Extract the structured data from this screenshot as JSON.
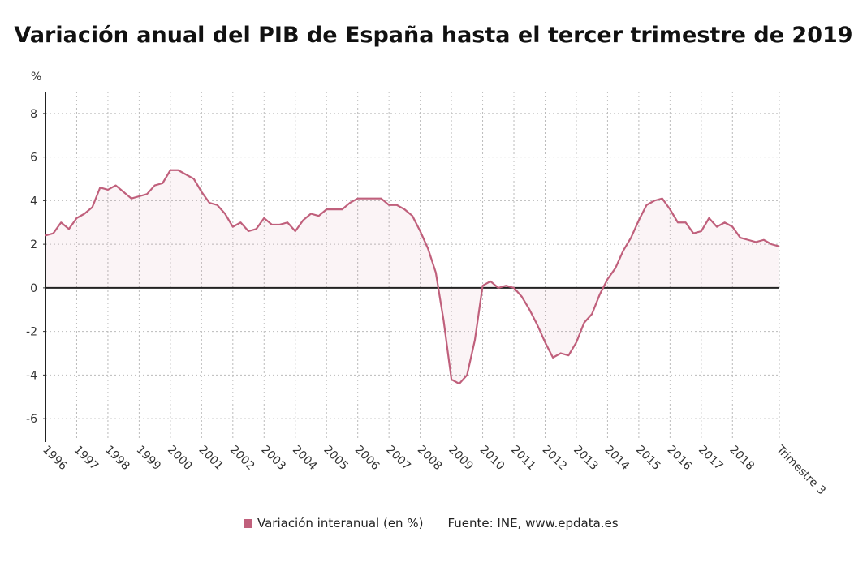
{
  "chart_data": {
    "type": "area",
    "title": "Variación anual del PIB de España hasta el tercer trimestre de 2019",
    "ylabel": "%",
    "ylim": [
      -7,
      9
    ],
    "yticks": [
      -6,
      -4,
      -2,
      0,
      2,
      4,
      6,
      8
    ],
    "grid": true,
    "x_tick_labels": [
      "1996",
      "1997",
      "1998",
      "1999",
      "2000",
      "2001",
      "2002",
      "2003",
      "2004",
      "2005",
      "2006",
      "2007",
      "2008",
      "2009",
      "2010",
      "2011",
      "2012",
      "2013",
      "2014",
      "2015",
      "2016",
      "2017",
      "2018",
      "Trimestre 3"
    ],
    "x_start": "1996 T1",
    "x_end": "2019 T3",
    "frequency": "quarterly",
    "series": [
      {
        "name": "Variación interanual (en %)",
        "color": "#c0607c",
        "values": [
          2.4,
          2.5,
          3.0,
          2.7,
          3.2,
          3.4,
          3.7,
          4.6,
          4.5,
          4.7,
          4.4,
          4.1,
          4.2,
          4.3,
          4.7,
          4.8,
          5.4,
          5.4,
          5.2,
          5.0,
          4.4,
          3.9,
          3.8,
          3.4,
          2.8,
          3.0,
          2.6,
          2.7,
          3.2,
          2.9,
          2.9,
          3.0,
          2.6,
          3.1,
          3.4,
          3.3,
          3.6,
          3.6,
          3.6,
          3.9,
          4.1,
          4.1,
          4.1,
          4.1,
          3.8,
          3.8,
          3.6,
          3.3,
          2.6,
          1.8,
          0.7,
          -1.5,
          -4.2,
          -4.4,
          -4.0,
          -2.4,
          0.1,
          0.3,
          0.0,
          0.1,
          0.0,
          -0.4,
          -1.0,
          -1.7,
          -2.5,
          -3.2,
          -3.0,
          -3.1,
          -2.5,
          -1.6,
          -1.2,
          -0.3,
          0.4,
          0.9,
          1.7,
          2.3,
          3.1,
          3.8,
          4.0,
          4.1,
          3.6,
          3.0,
          3.0,
          2.5,
          2.6,
          3.2,
          2.8,
          3.0,
          2.8,
          2.3,
          2.2,
          2.1,
          2.2,
          2.0,
          1.9
        ]
      }
    ],
    "legend_position": "bottom",
    "source": "Fuente: INE, www.epdata.es"
  }
}
